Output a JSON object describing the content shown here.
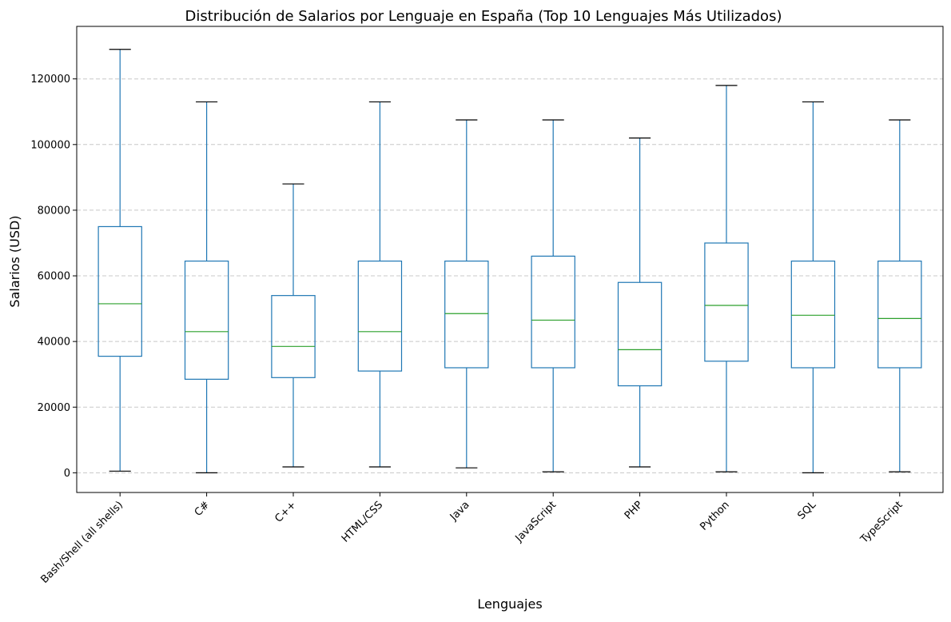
{
  "chart_data": {
    "type": "box",
    "title": "Distribución de Salarios por Lenguaje en España (Top 10 Lenguajes Más Utilizados)",
    "xlabel": "Lenguajes",
    "ylabel": "Salarios (USD)",
    "ylim": [
      -6000,
      136000
    ],
    "yticks": [
      0,
      20000,
      40000,
      60000,
      80000,
      100000,
      120000
    ],
    "grid": "horizontal-dashed",
    "colors": {
      "box": "#1f77b4",
      "median": "#2ca02c",
      "cap": "#000000",
      "grid": "#c8c8c8"
    },
    "categories": [
      "Bash/Shell (all shells)",
      "C#",
      "C++",
      "HTML/CSS",
      "Java",
      "JavaScript",
      "PHP",
      "Python",
      "SQL",
      "TypeScript"
    ],
    "boxes": [
      {
        "whislo": 500,
        "q1": 35500,
        "med": 51500,
        "q3": 75000,
        "whishi": 129000
      },
      {
        "whislo": 0,
        "q1": 28500,
        "med": 43000,
        "q3": 64500,
        "whishi": 113000
      },
      {
        "whislo": 1800,
        "q1": 29000,
        "med": 38500,
        "q3": 54000,
        "whishi": 88000
      },
      {
        "whislo": 1800,
        "q1": 31000,
        "med": 43000,
        "q3": 64500,
        "whishi": 113000
      },
      {
        "whislo": 1500,
        "q1": 32000,
        "med": 48500,
        "q3": 64500,
        "whishi": 107500
      },
      {
        "whislo": 300,
        "q1": 32000,
        "med": 46500,
        "q3": 66000,
        "whishi": 107500
      },
      {
        "whislo": 1800,
        "q1": 26500,
        "med": 37500,
        "q3": 58000,
        "whishi": 102000
      },
      {
        "whislo": 300,
        "q1": 34000,
        "med": 51000,
        "q3": 70000,
        "whishi": 118000
      },
      {
        "whislo": 0,
        "q1": 32000,
        "med": 48000,
        "q3": 64500,
        "whishi": 113000
      },
      {
        "whislo": 300,
        "q1": 32000,
        "med": 47000,
        "q3": 64500,
        "whishi": 107500
      }
    ]
  }
}
